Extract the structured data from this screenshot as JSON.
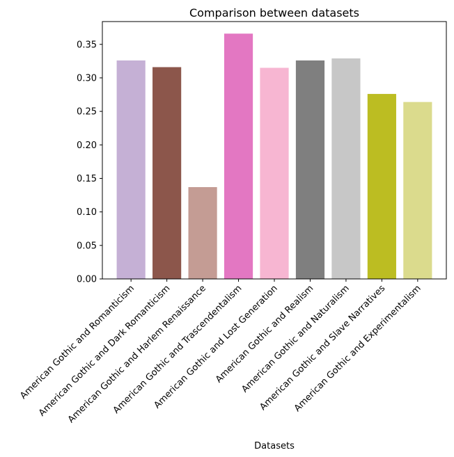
{
  "chart_data": {
    "type": "bar",
    "title": "Comparison between datasets",
    "xlabel": "Datasets",
    "ylabel": "",
    "ylim": [
      0,
      0.384
    ],
    "yticks": [
      0.0,
      0.05,
      0.1,
      0.15,
      0.2,
      0.25,
      0.3,
      0.35
    ],
    "grid": false,
    "categories": [
      "American Gothic and Romanticism",
      "American Gothic and Dark Romanticism",
      "American Gothic and Harlem Renaissance",
      "American Gothic and Trascendentalism",
      "American Gothic and Lost Generation",
      "American Gothic and Realism",
      "American Gothic and Naturalism",
      "American Gothic and Slave Narratives",
      "American Gothic and Experimentalism"
    ],
    "values": [
      0.326,
      0.316,
      0.137,
      0.366,
      0.315,
      0.326,
      0.329,
      0.276,
      0.264
    ],
    "colors": [
      "#c5b0d5",
      "#8c564b",
      "#c49c94",
      "#e377c2",
      "#f7b6d2",
      "#7f7f7f",
      "#c7c7c7",
      "#bcbd22",
      "#dbdb8d"
    ]
  }
}
